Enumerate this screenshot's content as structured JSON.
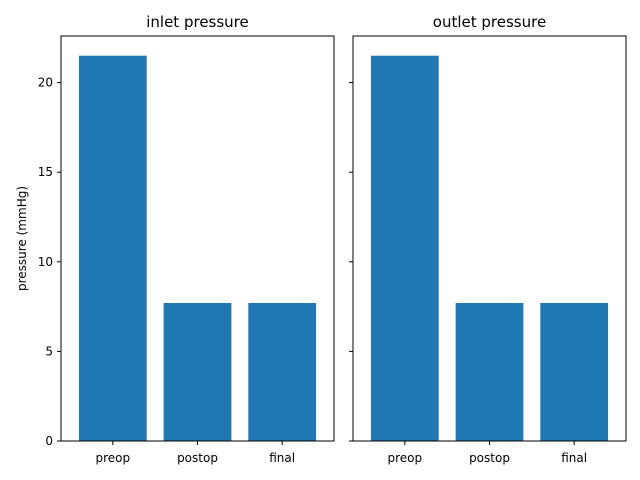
{
  "chart_data": [
    {
      "type": "bar",
      "title": "inlet pressure",
      "xlabel": "",
      "ylabel": "pressure (mmHg)",
      "categories": [
        "preop",
        "postop",
        "final"
      ],
      "values": [
        21.5,
        7.7,
        7.7
      ],
      "ylim": [
        0,
        22.6
      ],
      "yticks": [
        0,
        5,
        10,
        15,
        20
      ],
      "ytick_labels_visible": true,
      "bar_color": "#1f77b4",
      "grid": false
    },
    {
      "type": "bar",
      "title": "outlet pressure",
      "xlabel": "",
      "ylabel": "",
      "categories": [
        "preop",
        "postop",
        "final"
      ],
      "values": [
        21.5,
        7.7,
        7.7
      ],
      "ylim": [
        0,
        22.6
      ],
      "yticks": [
        0,
        5,
        10,
        15,
        20
      ],
      "ytick_labels_visible": false,
      "shared_y": true,
      "bar_color": "#1f77b4",
      "grid": false
    }
  ]
}
